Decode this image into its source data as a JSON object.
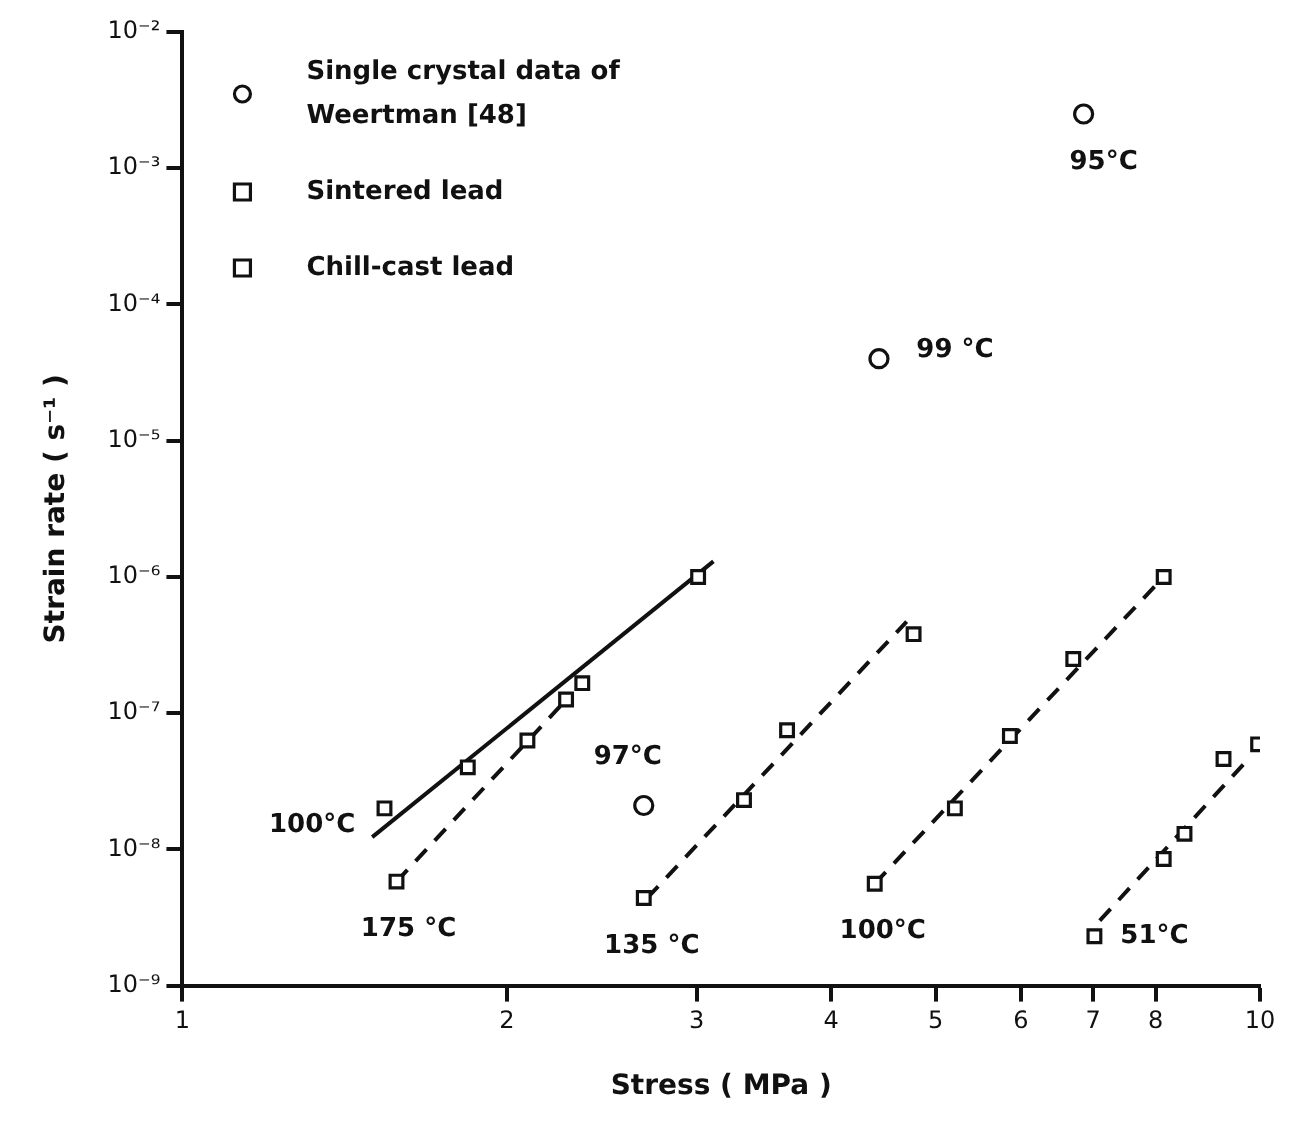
{
  "chart_data": {
    "type": "scatter",
    "xlabel": "Stress ( MPa )",
    "ylabel": "Strain rate ( s⁻¹ )",
    "log": "xy",
    "xlim": [
      1,
      10
    ],
    "ylim": [
      1e-09,
      0.01
    ],
    "xticks": [
      1,
      2,
      3,
      4,
      5,
      6,
      7,
      8,
      10
    ],
    "yticks": [
      {
        "value": 1e-09,
        "label": "10⁻⁹"
      },
      {
        "value": 1e-08,
        "label": "10⁻⁸"
      },
      {
        "value": 1e-07,
        "label": "10⁻⁷"
      },
      {
        "value": 1e-06,
        "label": "10⁻⁶"
      },
      {
        "value": 1e-05,
        "label": "10⁻⁵"
      },
      {
        "value": 0.0001,
        "label": "10⁻⁴"
      },
      {
        "value": 0.001,
        "label": "10⁻³"
      },
      {
        "value": 0.01,
        "label": "10⁻²"
      }
    ],
    "grid": false,
    "legend": "top left",
    "series": [
      {
        "name": "Single crystal data of Weertman [48]",
        "type": "scatter",
        "marker": "circle",
        "color": "#111111",
        "x": [
          6.86,
          4.43,
          2.68
        ],
        "values": [
          0.0025,
          4e-05,
          2.1e-08
        ]
      },
      {
        "name": "Sintered lead",
        "type": "scatter",
        "marker": "square",
        "color": "#111111",
        "x": [
          1.58,
          2.09,
          2.27,
          2.68,
          3.32,
          3.64,
          4.77,
          4.39,
          5.21,
          5.86,
          6.71,
          8.14,
          7.02,
          8.14,
          8.51,
          9.25,
          9.96
        ],
        "values": [
          5.8e-09,
          6.3e-08,
          1.26e-07,
          4.4e-09,
          2.3e-08,
          7.5e-08,
          3.8e-07,
          5.6e-09,
          2e-08,
          6.8e-08,
          2.5e-07,
          1e-06,
          2.3e-09,
          8.5e-09,
          1.3e-08,
          4.6e-08,
          5.9e-08
        ]
      },
      {
        "name": "Chill-cast lead",
        "type": "scatter",
        "marker": "square",
        "color": "#111111",
        "x": [
          1.54,
          1.84,
          2.35,
          3.01
        ],
        "values": [
          2e-08,
          4e-08,
          1.66e-07,
          1e-06
        ]
      },
      {
        "type": "line",
        "marker": "none",
        "line_style": "solid",
        "color": "#111111",
        "x": [
          1.5,
          3.11
        ],
        "values": [
          1.23e-08,
          1.3e-06
        ]
      },
      {
        "type": "line",
        "marker": "none",
        "line_style": "dashed",
        "color": "#111111",
        "x": [
          1.58,
          2.3
        ],
        "values": [
          5.8e-09,
          1.4e-07
        ]
      },
      {
        "type": "line",
        "marker": "none",
        "line_style": "dashed",
        "color": "#111111",
        "x": [
          2.7,
          4.7
        ],
        "values": [
          4.4e-09,
          4.7e-07
        ]
      },
      {
        "type": "line",
        "marker": "none",
        "line_style": "dashed",
        "color": "#111111",
        "x": [
          4.39,
          8.14
        ],
        "values": [
          5.6e-09,
          1e-06
        ]
      },
      {
        "type": "line",
        "marker": "none",
        "line_style": "dashed",
        "color": "#111111",
        "x": [
          7.1,
          9.8
        ],
        "values": [
          3e-09,
          4.8e-08
        ]
      }
    ],
    "annotations": [
      {
        "text": "95°C",
        "x": 6.86,
        "y": 0.0025
      },
      {
        "text": "99 °C",
        "x": 4.43,
        "y": 4e-05
      },
      {
        "text": "97°C",
        "x": 2.68,
        "y": 2.1e-08
      },
      {
        "text": "100°C",
        "x": 1.5,
        "y": 1.23e-08
      },
      {
        "text": "175 °C",
        "x": 1.58,
        "y": 5.8e-09
      },
      {
        "text": "135 °C",
        "x": 2.68,
        "y": 4.4e-09
      },
      {
        "text": "100°C",
        "x": 4.39,
        "y": 5.6e-09
      },
      {
        "text": "51°C",
        "x": 7.02,
        "y": 2.3e-09
      }
    ]
  }
}
